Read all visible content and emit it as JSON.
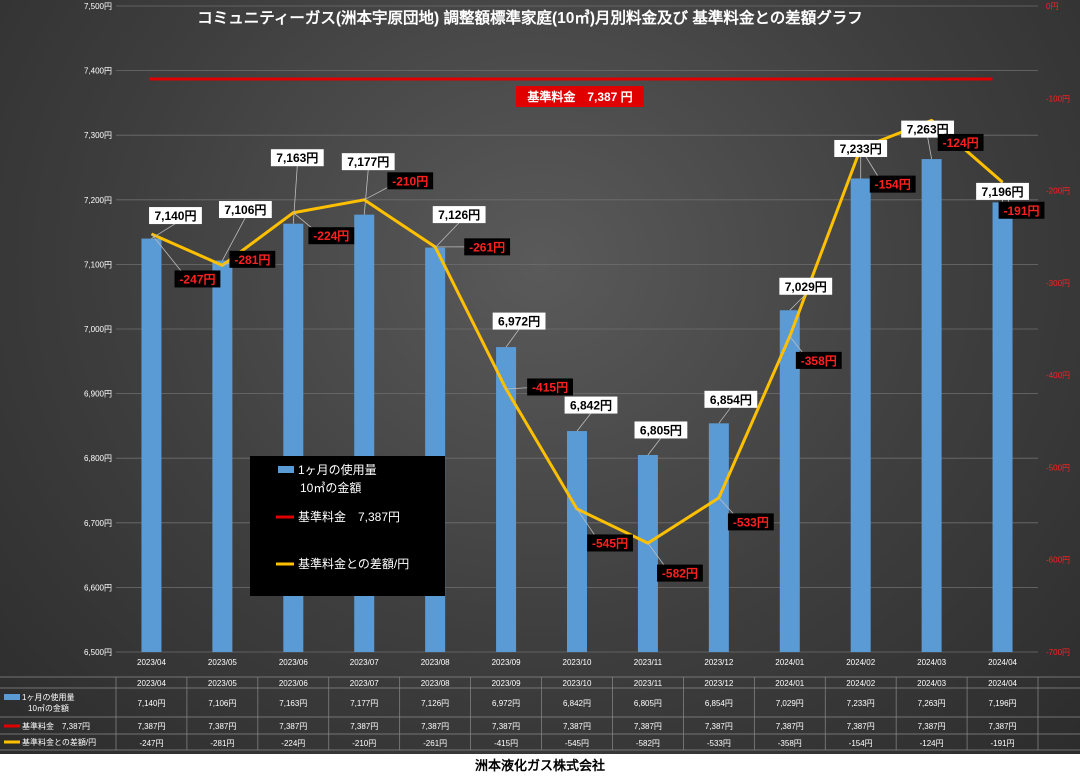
{
  "chart_data": {
    "type": "bar",
    "title": "コミュニティーガス(洲本宇原団地) 調整額標準家庭(10㎥)月別料金及び 基準料金との差額グラフ",
    "categories": [
      "2023/04",
      "2023/05",
      "2023/06",
      "2023/07",
      "2023/08",
      "2023/09",
      "2023/10",
      "2023/11",
      "2023/12",
      "2024/01",
      "2024/02",
      "2024/03",
      "2024/04"
    ],
    "series": [
      {
        "name": "1ヶ月の使用量 10㎥の金額",
        "type": "bar",
        "axis": "left",
        "color": "#5b9bd5",
        "values": [
          7140,
          7106,
          7163,
          7177,
          7126,
          6972,
          6842,
          6805,
          6854,
          7029,
          7233,
          7263,
          7196
        ],
        "labels": [
          "7,140円",
          "7,106円",
          "7,163円",
          "7,177円",
          "7,126円",
          "6,972円",
          "6,842円",
          "6,805円",
          "6,854円",
          "7,029円",
          "7,233円",
          "7,263円",
          "7,196円"
        ]
      },
      {
        "name": "基準料金　7,387円",
        "type": "line",
        "axis": "left",
        "color": "#e00000",
        "values": [
          7387,
          7387,
          7387,
          7387,
          7387,
          7387,
          7387,
          7387,
          7387,
          7387,
          7387,
          7387,
          7387
        ],
        "labels": [
          "7,387円",
          "7,387円",
          "7,387円",
          "7,387円",
          "7,387円",
          "7,387円",
          "7,387円",
          "7,387円",
          "7,387円",
          "7,387円",
          "7,387円",
          "7,387円",
          "7,387円"
        ]
      },
      {
        "name": "基準料金との差額/円",
        "type": "line",
        "axis": "right",
        "color": "#ffc000",
        "values": [
          -247,
          -281,
          -224,
          -210,
          -261,
          -415,
          -545,
          -582,
          -533,
          -358,
          -154,
          -124,
          -191
        ],
        "labels": [
          "-247円",
          "-281円",
          "-224円",
          "-210円",
          "-261円",
          "-415円",
          "-545円",
          "-582円",
          "-533円",
          "-358円",
          "-154円",
          "-124円",
          "-191円"
        ]
      }
    ],
    "y_left": {
      "range": [
        6500,
        7500
      ],
      "ticks": [
        "6,500円",
        "6,600円",
        "6,700円",
        "6,800円",
        "6,900円",
        "7,000円",
        "7,100円",
        "7,200円",
        "7,300円",
        "7,400円",
        "7,500円"
      ]
    },
    "y_right": {
      "range": [
        -700,
        0
      ],
      "ticks": [
        "-700円",
        "-600円",
        "-500円",
        "-400円",
        "-300円",
        "-200円",
        "-100円",
        "0円"
      ]
    },
    "base_label": "基準料金　7,387 円",
    "legend": {
      "placement": "center-left",
      "bar_line1": "1ヶ月の使用量",
      "bar_line2": "10㎥の金額",
      "base": "基準料金　7,387円",
      "diff": "基準料金との差額/円"
    },
    "table": {
      "row1_head_line1": "1ヶ月の使用量",
      "row1_head_line2": "10㎥の金額",
      "row2_head": "基準料金　7,387円",
      "row3_head": "基準料金との差額/円"
    },
    "grid": true
  },
  "footer": "洲本液化ガス株式会社"
}
